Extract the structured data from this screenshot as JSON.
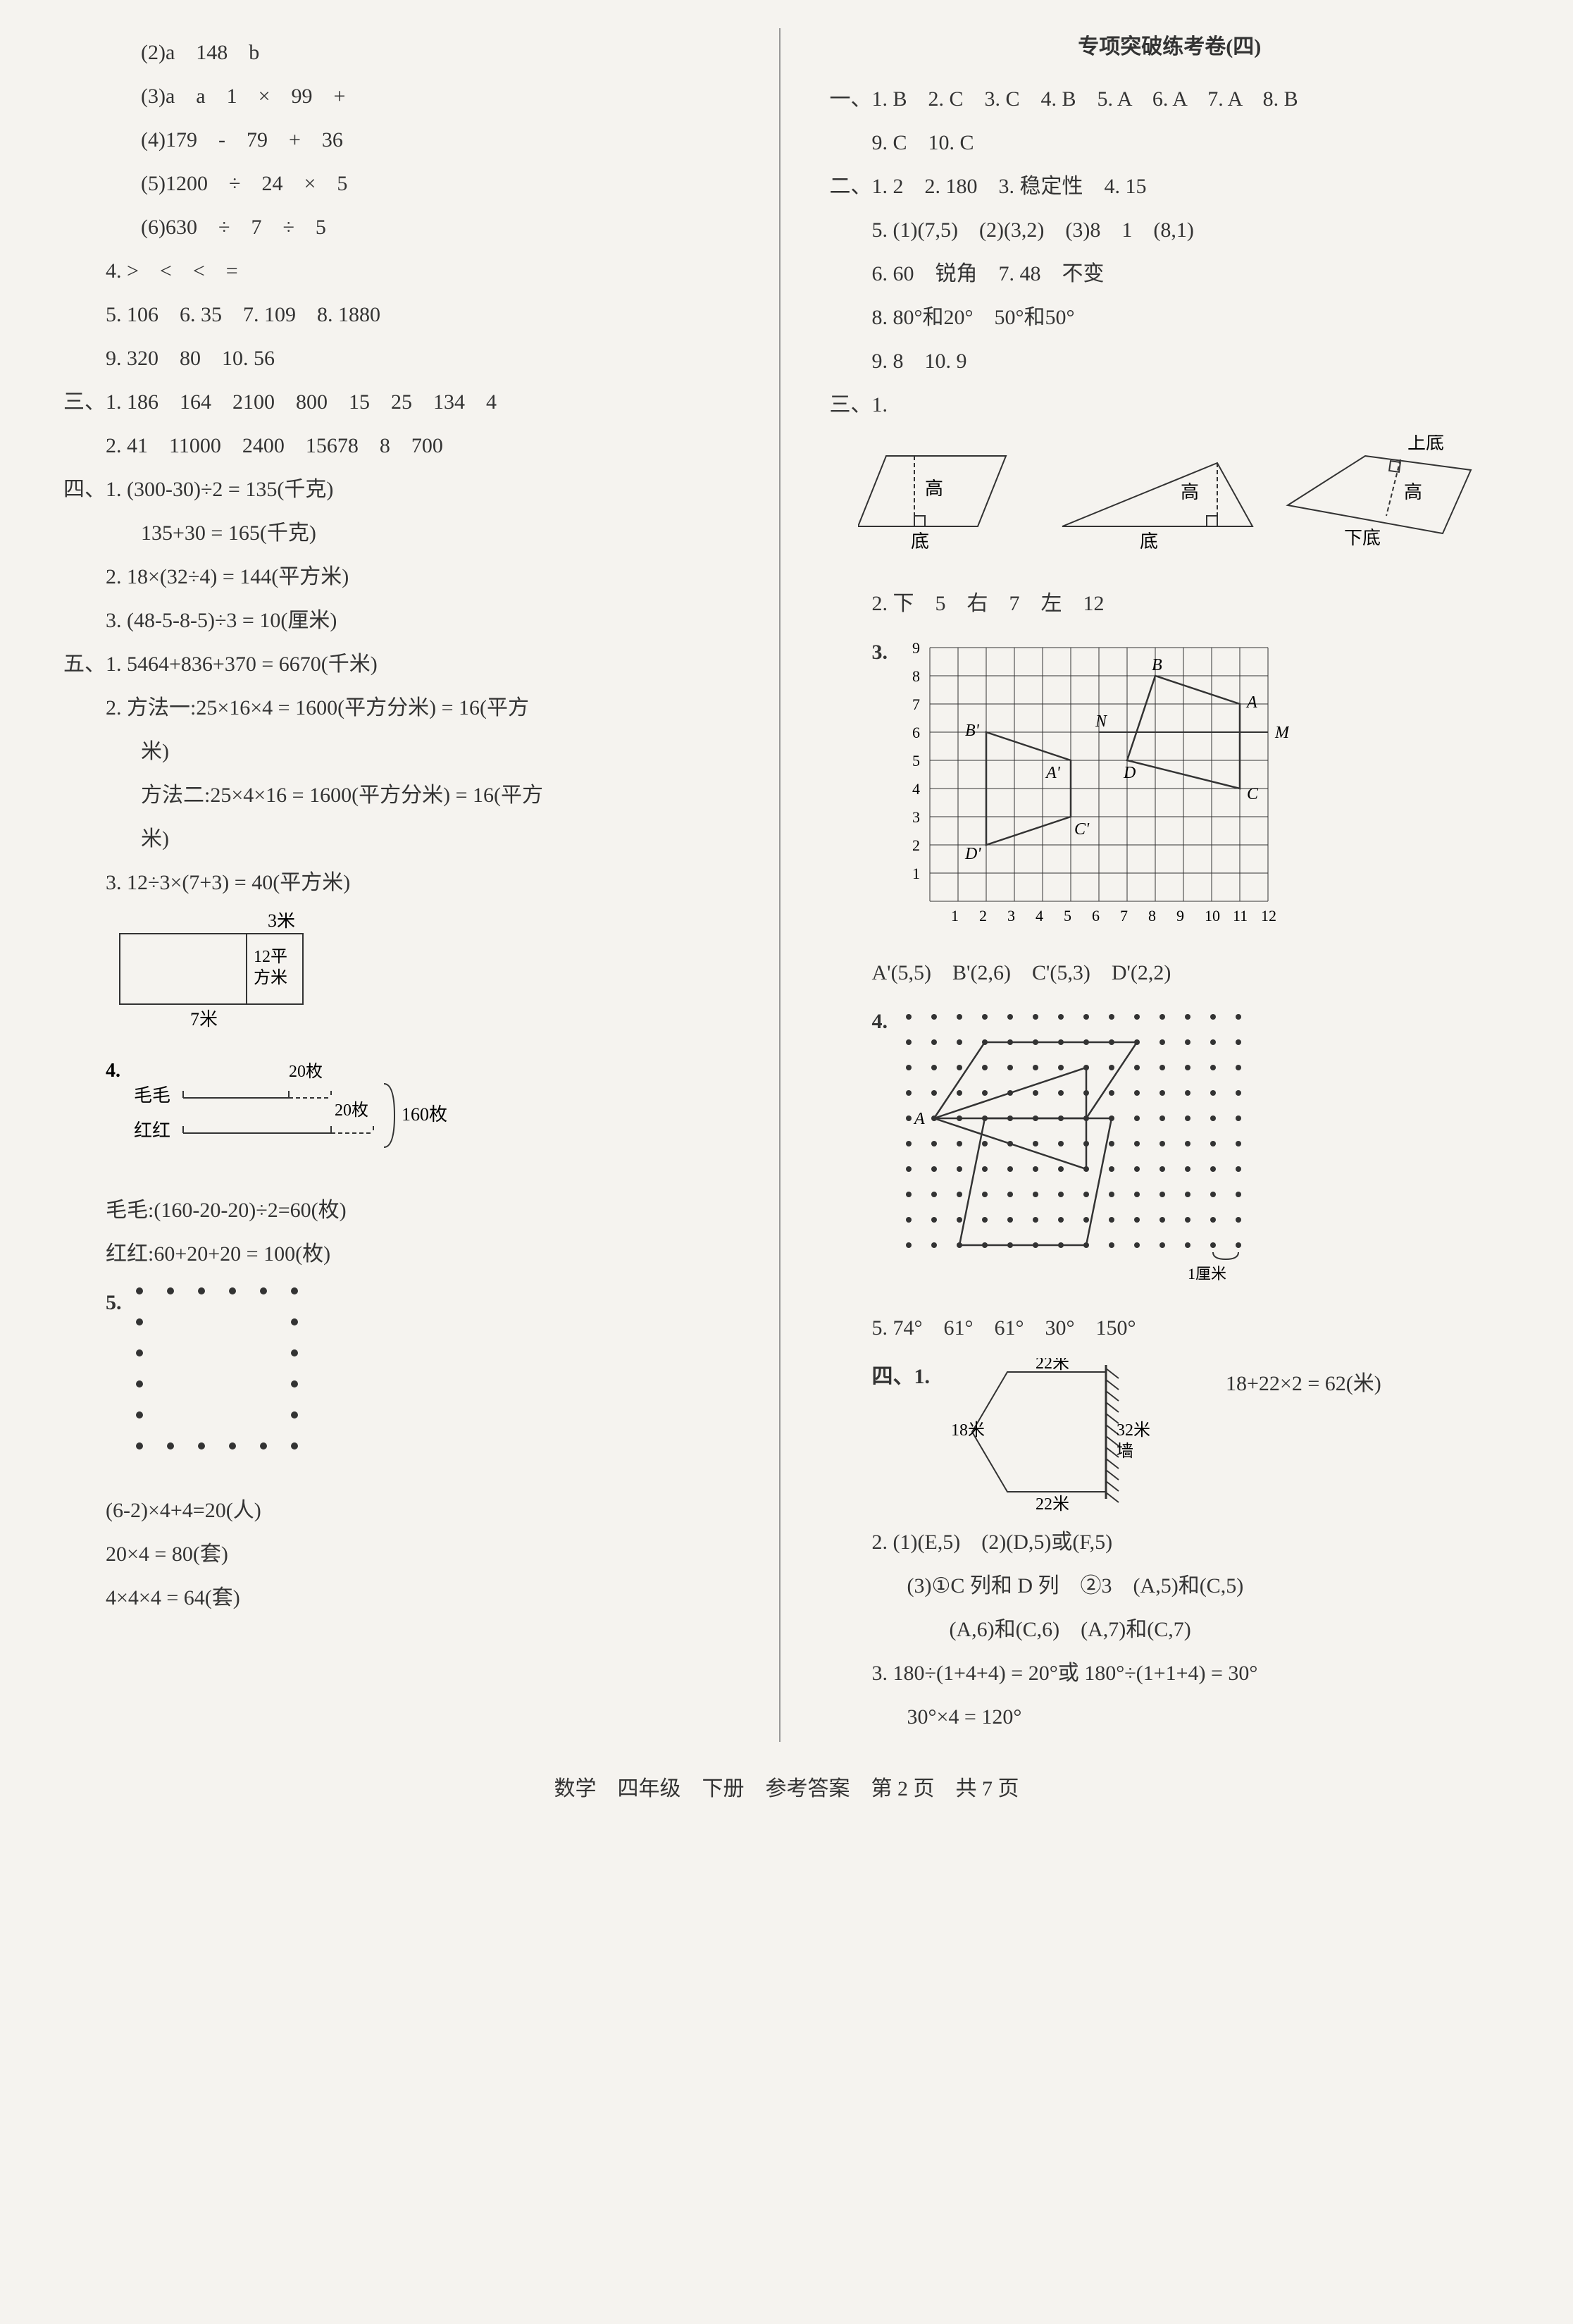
{
  "left": {
    "lines": [
      {
        "cls": "indent2",
        "text": "(2)a　148　b"
      },
      {
        "cls": "indent2",
        "text": "(3)a　a　1　×　99　+"
      },
      {
        "cls": "indent2",
        "text": "(4)179　-　79　+　36"
      },
      {
        "cls": "indent2",
        "text": "(5)1200　÷　24　×　5"
      },
      {
        "cls": "indent2",
        "text": "(6)630　÷　7　÷　5"
      },
      {
        "cls": "indent1",
        "text": "4. >　<　<　="
      },
      {
        "cls": "indent1",
        "text": "5. 106　6. 35　7. 109　8. 1880"
      },
      {
        "cls": "indent1",
        "text": "9. 320　80　10. 56"
      },
      {
        "cls": "",
        "text": "三、1. 186　164　2100　800　15　25　134　4"
      },
      {
        "cls": "indent1",
        "text": "2. 41　11000　2400　15678　8　700"
      },
      {
        "cls": "",
        "text": "四、1. (300-30)÷2 = 135(千克)"
      },
      {
        "cls": "indent2",
        "text": "135+30 = 165(千克)"
      },
      {
        "cls": "indent1",
        "text": "2. 18×(32÷4) = 144(平方米)"
      },
      {
        "cls": "indent1",
        "text": "3. (48-5-8-5)÷3 = 10(厘米)"
      },
      {
        "cls": "",
        "text": "五、1. 5464+836+370 = 6670(千米)"
      },
      {
        "cls": "indent1",
        "text": "2. 方法一:25×16×4 = 1600(平方分米) = 16(平方"
      },
      {
        "cls": "indent2",
        "text": "米)"
      },
      {
        "cls": "indent2",
        "text": "方法二:25×4×16 = 1600(平方分米) = 16(平方"
      },
      {
        "cls": "indent2",
        "text": "米)"
      },
      {
        "cls": "indent1",
        "text": "3. 12÷3×(7+3) = 40(平方米)"
      }
    ],
    "rect_diagram": {
      "label_top": "3米",
      "label_mid": "12平\n方米",
      "label_bottom": "7米"
    },
    "item4": {
      "num": "4.",
      "mao": "毛毛",
      "hong": "红红",
      "v20": "20枚",
      "v160": "160枚"
    },
    "after4": [
      {
        "cls": "indent1",
        "text": "毛毛:(160-20-20)÷2=60(枚)"
      },
      {
        "cls": "indent1",
        "text": "红红:60+20+20 = 100(枚)"
      }
    ],
    "item5num": "5.",
    "after5": [
      {
        "cls": "indent1",
        "text": "(6-2)×4+4=20(人)"
      },
      {
        "cls": "indent1",
        "text": "20×4 = 80(套)"
      },
      {
        "cls": "indent1",
        "text": "4×4×4 = 64(套)"
      }
    ]
  },
  "right": {
    "title": "专项突破练考卷(四)",
    "lines1": [
      {
        "cls": "",
        "text": "一、1. B　2. C　3. C　4. B　5. A　6. A　7. A　8. B"
      },
      {
        "cls": "indent1",
        "text": "9. C　10. C"
      },
      {
        "cls": "",
        "text": "二、1. 2　2. 180　3. 稳定性　4. 15"
      },
      {
        "cls": "indent1",
        "text": "5. (1)(7,5)　(2)(3,2)　(3)8　1　(8,1)"
      },
      {
        "cls": "indent1",
        "text": "6. 60　锐角　7. 48　不变"
      },
      {
        "cls": "indent1",
        "text": "8. 80°和20°　50°和50°"
      },
      {
        "cls": "indent1",
        "text": "9. 8　10. 9"
      }
    ],
    "san1": "三、1.",
    "shapes": {
      "gao": "高",
      "di": "底",
      "shangdi": "上底",
      "xiadi": "下底"
    },
    "line_san2": {
      "cls": "indent1",
      "text": "2. 下　5　右　7　左　12"
    },
    "grid": {
      "num": "3.",
      "ylabels": [
        "1",
        "2",
        "3",
        "4",
        "5",
        "6",
        "7",
        "8",
        "9"
      ],
      "xlabels": [
        "1",
        "2",
        "3",
        "4",
        "5",
        "6",
        "7",
        "8",
        "9",
        "10",
        "11",
        "12"
      ],
      "B": "B",
      "A": "A",
      "Bp": "B'",
      "N": "N",
      "Ap": "A'",
      "M": "M",
      "D": "D",
      "C": "C",
      "Cp": "C'",
      "Dp": "D'"
    },
    "grid_coords": {
      "cls": "indent1",
      "text": "A'(5,5)　B'(2,6)　C'(5,3)　D'(2,2)"
    },
    "dots4": {
      "num": "4.",
      "A": "A",
      "cm": "1厘米"
    },
    "line5": {
      "cls": "indent1",
      "text": "5. 74°　61°　61°　30°　150°"
    },
    "si1": {
      "num": "四、1.",
      "top": "22米",
      "left": "18米",
      "right": "32米",
      "bottom": "22米",
      "wall": "墙",
      "calc": "18+22×2 = 62(米)"
    },
    "lines_end": [
      {
        "cls": "indent1",
        "text": "2. (1)(E,5)　(2)(D,5)或(F,5)"
      },
      {
        "cls": "indent2",
        "text": "(3)①C 列和 D 列　②3　(A,5)和(C,5)"
      },
      {
        "cls": "indent3",
        "text": "(A,6)和(C,6)　(A,7)和(C,7)"
      },
      {
        "cls": "indent1",
        "text": "3. 180÷(1+4+4) = 20°或 180°÷(1+1+4) = 30°"
      },
      {
        "cls": "indent2",
        "text": "30°×4 = 120°"
      }
    ]
  },
  "footer": "数学　四年级　下册　参考答案　第 2 页　共 7 页",
  "colors": {
    "stroke": "#333333",
    "grid": "#555555",
    "bg": "#f5f3ef"
  }
}
